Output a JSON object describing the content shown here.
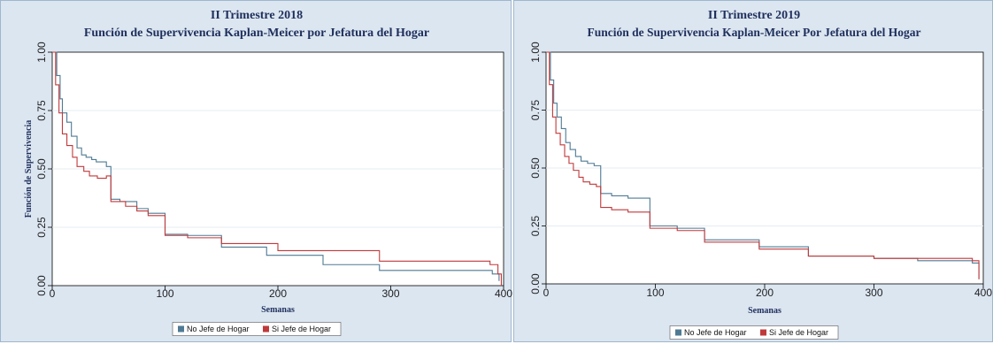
{
  "colors": {
    "no_jefe": "#4e7a94",
    "si_jefe": "#c0393b",
    "panel_bg": "#dce6f1",
    "grid": "#e6ecf2",
    "title": "#1f2f5c"
  },
  "chart_data": [
    {
      "type": "line",
      "step": true,
      "title": "II Trimestre 2018",
      "subtitle": "Función de Supervivencia Kaplan-Meicer por Jefatura del Hogar",
      "xlabel": "Semanas",
      "ylabel": "Función de Supervivencia",
      "xlim": [
        0,
        400
      ],
      "ylim": [
        0,
        1
      ],
      "xticks": [
        0,
        100,
        200,
        300,
        400
      ],
      "yticks": [
        "0.00",
        "0.25",
        "0.50",
        "0.75",
        "1.00"
      ],
      "grid": true,
      "legend_position": "bottom",
      "series": [
        {
          "name": "No Jefe de Hogar",
          "color": "#4e7a94",
          "x": [
            0,
            4,
            7,
            9,
            13,
            17,
            22,
            26,
            30,
            35,
            39,
            48,
            52,
            60,
            75,
            85,
            100,
            120,
            150,
            190,
            240,
            290,
            390,
            396
          ],
          "y": [
            1.0,
            0.9,
            0.8,
            0.74,
            0.7,
            0.64,
            0.59,
            0.56,
            0.55,
            0.54,
            0.53,
            0.51,
            0.37,
            0.36,
            0.33,
            0.31,
            0.22,
            0.215,
            0.165,
            0.13,
            0.09,
            0.065,
            0.05,
            0.02
          ]
        },
        {
          "name": "Si Jefe de Hogar",
          "color": "#c0393b",
          "x": [
            0,
            3,
            6,
            9,
            13,
            18,
            22,
            28,
            33,
            40,
            48,
            52,
            65,
            75,
            85,
            100,
            120,
            150,
            200,
            290,
            388,
            395,
            398
          ],
          "y": [
            1.0,
            0.86,
            0.74,
            0.65,
            0.6,
            0.55,
            0.51,
            0.49,
            0.47,
            0.46,
            0.47,
            0.36,
            0.34,
            0.32,
            0.3,
            0.215,
            0.205,
            0.18,
            0.15,
            0.105,
            0.09,
            0.05,
            0.0
          ]
        }
      ]
    },
    {
      "type": "line",
      "step": true,
      "title": "II Trimestre 2019",
      "subtitle": "Función de Supervivencia Kaplan-Meicer Por Jefatura del Hogar",
      "xlabel": "Semanas",
      "ylabel": "",
      "xlim": [
        0,
        400
      ],
      "ylim": [
        0,
        1
      ],
      "xticks": [
        0,
        100,
        200,
        300,
        400
      ],
      "yticks": [
        "0.00",
        "0.25",
        "0.50",
        "0.75",
        "1.00"
      ],
      "grid": true,
      "legend_position": "bottom",
      "series": [
        {
          "name": "No Jefe de Hogar",
          "color": "#4e7a94",
          "x": [
            0,
            4,
            7,
            10,
            14,
            18,
            22,
            27,
            32,
            38,
            44,
            50,
            60,
            75,
            95,
            120,
            145,
            195,
            240,
            300,
            340,
            390,
            396
          ],
          "y": [
            1.0,
            0.88,
            0.78,
            0.72,
            0.67,
            0.61,
            0.58,
            0.55,
            0.53,
            0.52,
            0.51,
            0.39,
            0.38,
            0.37,
            0.25,
            0.24,
            0.19,
            0.16,
            0.12,
            0.11,
            0.1,
            0.09,
            0.02
          ]
        },
        {
          "name": "Si Jefe de Hogar",
          "color": "#c0393b",
          "x": [
            0,
            3,
            6,
            9,
            13,
            17,
            21,
            25,
            30,
            34,
            40,
            46,
            50,
            60,
            75,
            95,
            120,
            145,
            195,
            240,
            300,
            390,
            396
          ],
          "y": [
            1.0,
            0.86,
            0.72,
            0.65,
            0.6,
            0.55,
            0.52,
            0.49,
            0.46,
            0.44,
            0.43,
            0.42,
            0.33,
            0.32,
            0.31,
            0.24,
            0.23,
            0.18,
            0.15,
            0.12,
            0.11,
            0.1,
            0.02
          ]
        }
      ]
    }
  ]
}
